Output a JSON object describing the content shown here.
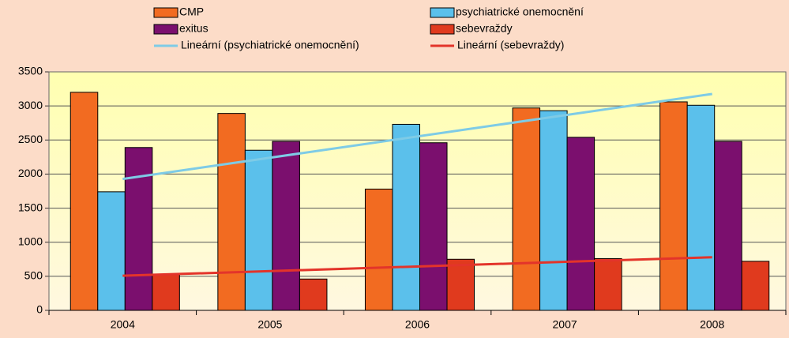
{
  "chart_data": {
    "type": "bar",
    "categories": [
      "2004",
      "2005",
      "2006",
      "2007",
      "2008"
    ],
    "series": [
      {
        "name": "CMP",
        "color": "#f26b21",
        "values": [
          3200,
          2890,
          1780,
          2970,
          3060
        ]
      },
      {
        "name": "psychiatrické onemocnění",
        "color": "#5bc0eb",
        "values": [
          1740,
          2350,
          2730,
          2930,
          3010
        ]
      },
      {
        "name": "exitus",
        "color": "#7b0f6e",
        "values": [
          2390,
          2480,
          2460,
          2540,
          2480
        ]
      },
      {
        "name": "sebevraždy",
        "color": "#e03a1e",
        "values": [
          530,
          460,
          750,
          760,
          720
        ]
      }
    ],
    "trendlines": [
      {
        "name": "Lineární (psychiatrické onemocnění)",
        "color": "#7ecbe6",
        "source": "psychiatrické onemocnění"
      },
      {
        "name": "Lineární (sebevraždy)",
        "color": "#e3342a",
        "source": "sebevraždy"
      }
    ],
    "ylim": [
      0,
      3500
    ],
    "yticks": [
      0,
      500,
      1000,
      1500,
      2000,
      2500,
      3000,
      3500
    ],
    "grid": true
  }
}
